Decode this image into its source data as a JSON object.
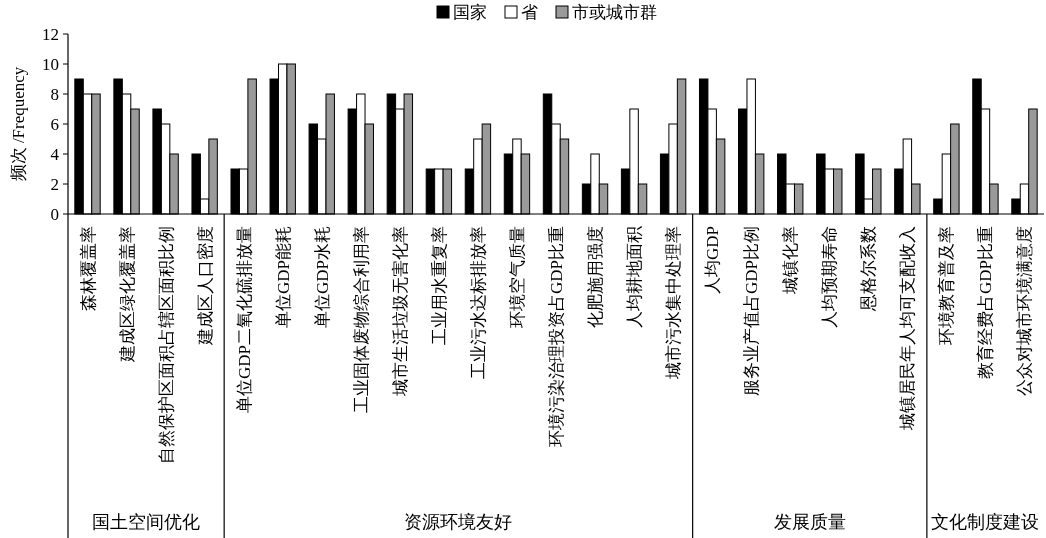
{
  "chart_data": {
    "type": "bar",
    "ylabel": "频次 /Frequency",
    "categories": [
      "森林覆盖率",
      "建成区绿化覆盖率",
      "自然保护区面积占辖区面积比例",
      "建成区人口密度",
      "单位GDP二氧化硫排放量",
      "单位GDP能耗",
      "单位GDP水耗",
      "工业固体废物综合利用率",
      "城市生活垃圾无害化率",
      "工业用水重复率",
      "工业污水达标排放率",
      "环境空气质量",
      "环境污染治理投资占GDP比重",
      "化肥施用强度",
      "人均耕地面积",
      "城市污水集中处理率",
      "人均GDP",
      "服务业产值占GDP比例",
      "城镇化率",
      "人均预期寿命",
      "恩格尔系数",
      "城镇居民年人均可支配收入",
      "环境教育普及率",
      "教育经费占GDP比重",
      "公众对城市环境满意度"
    ],
    "series": [
      {
        "name": "国家",
        "color": "#000000",
        "values": [
          9,
          9,
          7,
          4,
          3,
          9,
          6,
          7,
          8,
          3,
          3,
          4,
          8,
          2,
          3,
          4,
          9,
          7,
          4,
          4,
          4,
          3,
          1,
          9,
          1
        ]
      },
      {
        "name": "省",
        "color": "#ffffff",
        "values": [
          8,
          8,
          6,
          1,
          3,
          10,
          5,
          8,
          7,
          3,
          5,
          5,
          6,
          4,
          7,
          6,
          7,
          9,
          2,
          3,
          1,
          5,
          4,
          7,
          2
        ]
      },
      {
        "name": "市或城市群",
        "color": "#9a9a9a",
        "values": [
          8,
          7,
          4,
          5,
          9,
          10,
          8,
          6,
          8,
          3,
          6,
          4,
          5,
          2,
          2,
          9,
          5,
          4,
          2,
          3,
          3,
          2,
          6,
          2,
          7
        ]
      }
    ],
    "annotations": [
      "国土空间优化",
      "资源环境友好",
      "发展质量",
      "文化制度建设"
    ],
    "ylim": [
      0,
      12
    ],
    "yticks": [
      0,
      2,
      4,
      6,
      8,
      10,
      12
    ],
    "grid": false,
    "legend": "top"
  }
}
